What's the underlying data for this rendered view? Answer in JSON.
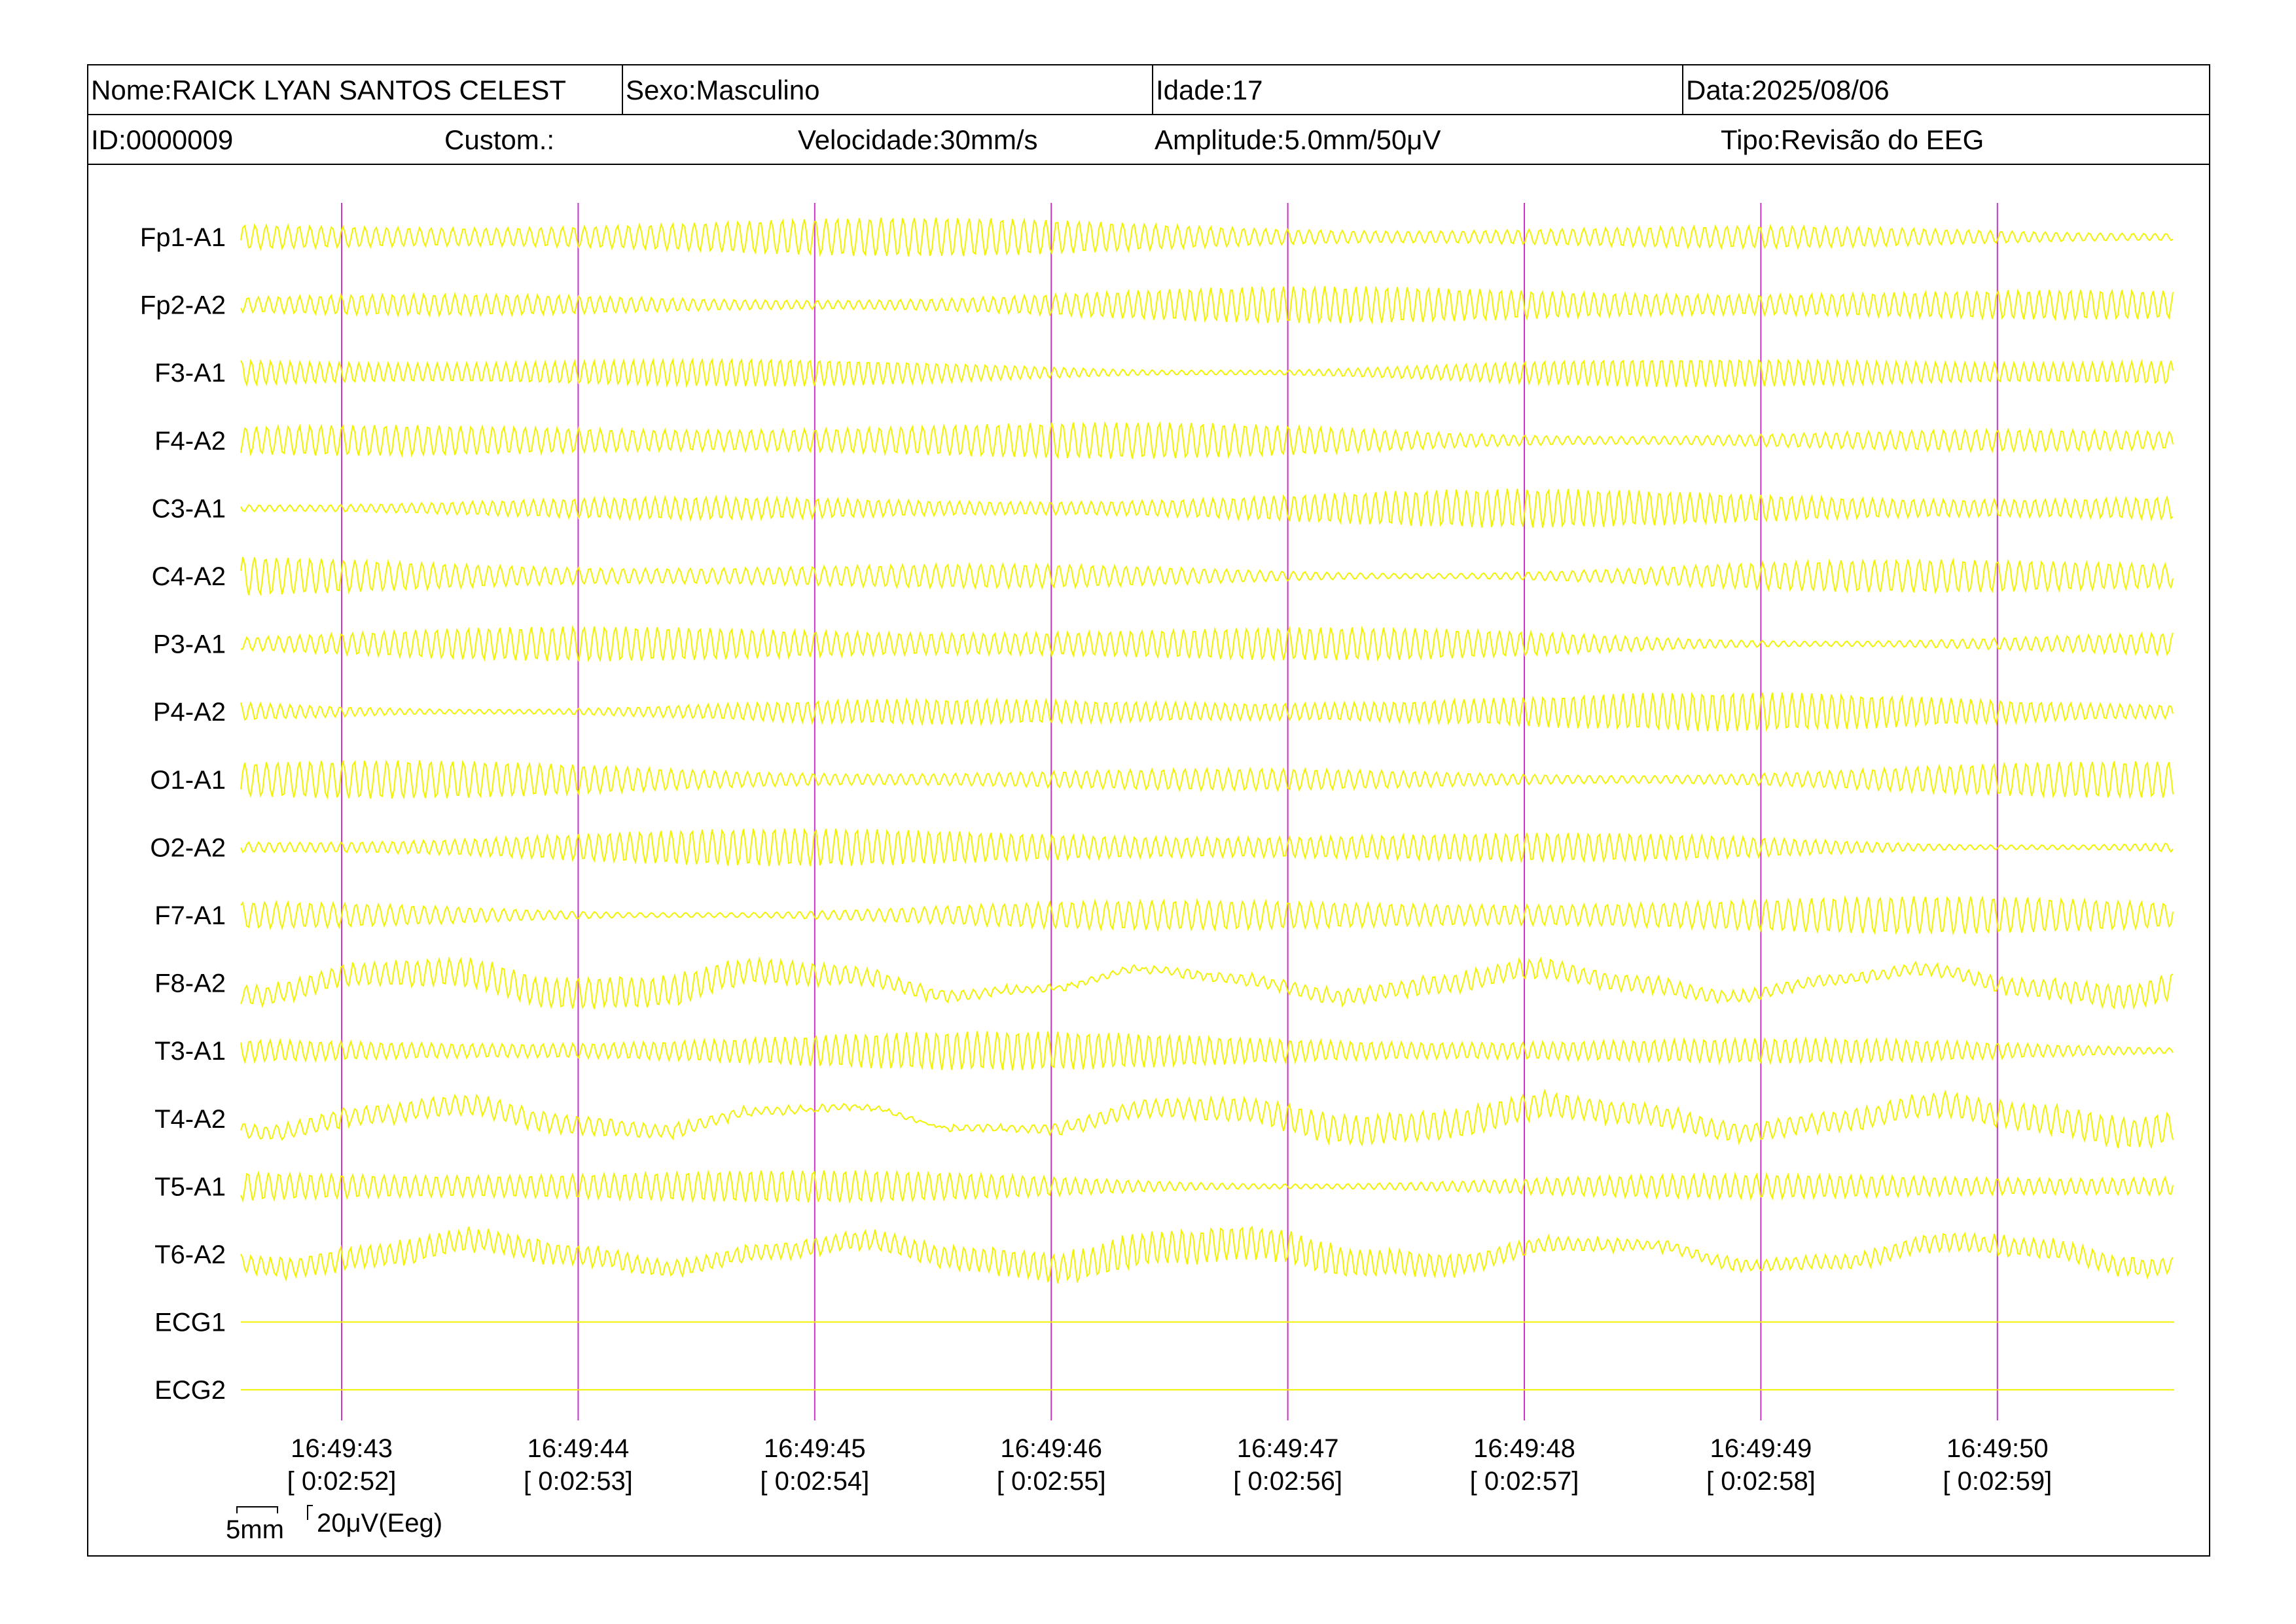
{
  "header": {
    "nome": "Nome:RAICK LYAN SANTOS CELEST",
    "sexo": "Sexo:Masculino",
    "idade": "Idade:17",
    "data": "Data:2025/08/06",
    "id": "ID:0000009",
    "custom": "Custom.:",
    "velocidade": "Velocidade:30mm/s",
    "amplitude": "Amplitude:5.0mm/50μV",
    "tipo": "Tipo:Revisão do EEG"
  },
  "channels": [
    {
      "label": "Fp1-A1",
      "kind": "eeg"
    },
    {
      "label": "Fp2-A2",
      "kind": "eeg"
    },
    {
      "label": "F3-A1",
      "kind": "eeg"
    },
    {
      "label": "F4-A2",
      "kind": "eeg"
    },
    {
      "label": "C3-A1",
      "kind": "eeg"
    },
    {
      "label": "C4-A2",
      "kind": "eeg"
    },
    {
      "label": "P3-A1",
      "kind": "eeg"
    },
    {
      "label": "P4-A2",
      "kind": "eeg"
    },
    {
      "label": "O1-A1",
      "kind": "eeg"
    },
    {
      "label": "O2-A2",
      "kind": "eeg"
    },
    {
      "label": "F7-A1",
      "kind": "eeg"
    },
    {
      "label": "F8-A2",
      "kind": "eeg"
    },
    {
      "label": "T3-A1",
      "kind": "eeg"
    },
    {
      "label": "T4-A2",
      "kind": "eeg"
    },
    {
      "label": "T5-A1",
      "kind": "eeg"
    },
    {
      "label": "T6-A2",
      "kind": "eeg"
    },
    {
      "label": "ECG1",
      "kind": "flat"
    },
    {
      "label": "ECG2",
      "kind": "flat"
    }
  ],
  "time_markers": [
    {
      "clock": "16:49:43",
      "elapsed": "[ 0:02:52]"
    },
    {
      "clock": "16:49:44",
      "elapsed": "[ 0:02:53]"
    },
    {
      "clock": "16:49:45",
      "elapsed": "[ 0:02:54]"
    },
    {
      "clock": "16:49:46",
      "elapsed": "[ 0:02:55]"
    },
    {
      "clock": "16:49:47",
      "elapsed": "[ 0:02:56]"
    },
    {
      "clock": "16:49:48",
      "elapsed": "[ 0:02:57]"
    },
    {
      "clock": "16:49:49",
      "elapsed": "[ 0:02:58]"
    },
    {
      "clock": "16:49:50",
      "elapsed": "[ 0:02:59]"
    }
  ],
  "scale": {
    "horizontal_label": "5mm",
    "vertical_label": "20μV(Eeg)"
  },
  "colors": {
    "trace": "#f2f200",
    "marker": "#cc33cc",
    "border": "#000000"
  }
}
